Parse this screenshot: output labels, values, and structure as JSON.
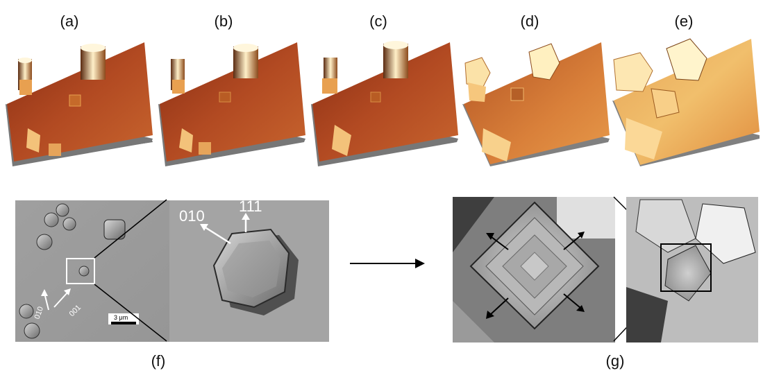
{
  "labels": {
    "a": "(a)",
    "b": "(b)",
    "c": "(c)",
    "d": "(d)",
    "e": "(e)",
    "f": "(f)",
    "g": "(g)"
  },
  "panel_f": {
    "zoom_dir_1": "010",
    "zoom_dir_2": "111",
    "small_dir_1": "010",
    "small_dir_2": "001",
    "scalebar": "3 μm"
  }
}
